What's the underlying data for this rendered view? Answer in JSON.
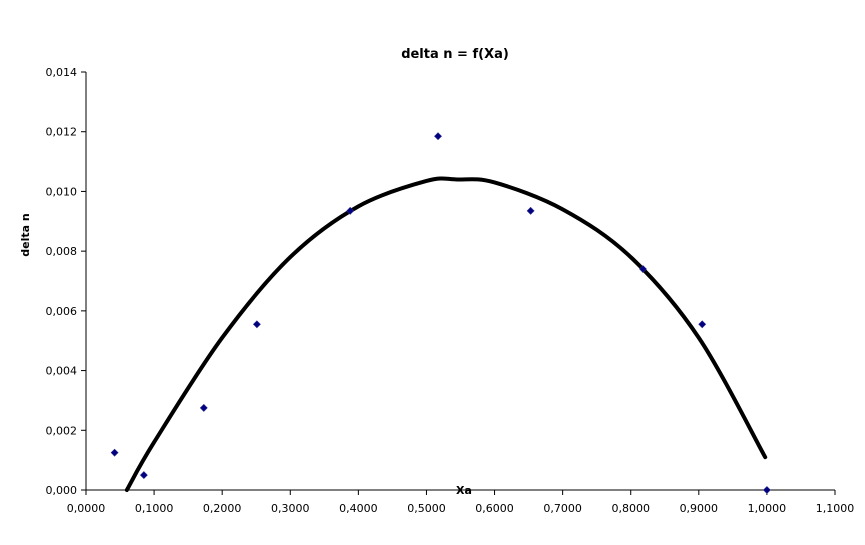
{
  "chart_data": {
    "type": "scatter",
    "title": "delta n = f(Xa)",
    "xlabel": "Xa",
    "ylabel": "delta n",
    "xlim": [
      0,
      1.1
    ],
    "ylim": [
      0,
      0.014
    ],
    "x_ticks": [
      "0,0000",
      "0,1000",
      "0,2000",
      "0,3000",
      "0,4000",
      "0,5000",
      "0,6000",
      "0,7000",
      "0,8000",
      "0,9000",
      "1,0000",
      "1,1000"
    ],
    "y_ticks": [
      "0,000",
      "0,002",
      "0,004",
      "0,006",
      "0,008",
      "0,010",
      "0,012",
      "0,014"
    ],
    "grid": false,
    "legend": "none",
    "series": [
      {
        "points": [
          {
            "x": 0.042,
            "y": 0.00125
          },
          {
            "x": 0.085,
            "y": 0.0005
          },
          {
            "x": 0.173,
            "y": 0.00275
          },
          {
            "x": 0.251,
            "y": 0.00555
          },
          {
            "x": 0.388,
            "y": 0.00935
          },
          {
            "x": 0.517,
            "y": 0.01185
          },
          {
            "x": 0.653,
            "y": 0.00935
          },
          {
            "x": 0.818,
            "y": 0.0074
          },
          {
            "x": 0.905,
            "y": 0.00555
          },
          {
            "x": 1.0,
            "y": 0.0
          }
        ],
        "color": "#000080",
        "marker": "diamond"
      }
    ],
    "trendline": {
      "type": "polynomial",
      "order": 2,
      "color": "#000000",
      "x_range": [
        0.06,
        0.9975
      ],
      "points": [
        {
          "x": 0.06,
          "y": 0.0
        },
        {
          "x": 0.1,
          "y": 0.0016
        },
        {
          "x": 0.2,
          "y": 0.0051
        },
        {
          "x": 0.3,
          "y": 0.0078
        },
        {
          "x": 0.4,
          "y": 0.0095
        },
        {
          "x": 0.5,
          "y": 0.01035
        },
        {
          "x": 0.545,
          "y": 0.0104
        },
        {
          "x": 0.6,
          "y": 0.0103
        },
        {
          "x": 0.7,
          "y": 0.0094
        },
        {
          "x": 0.8,
          "y": 0.0078
        },
        {
          "x": 0.9,
          "y": 0.0051
        },
        {
          "x": 0.9975,
          "y": 0.0011
        }
      ]
    }
  }
}
